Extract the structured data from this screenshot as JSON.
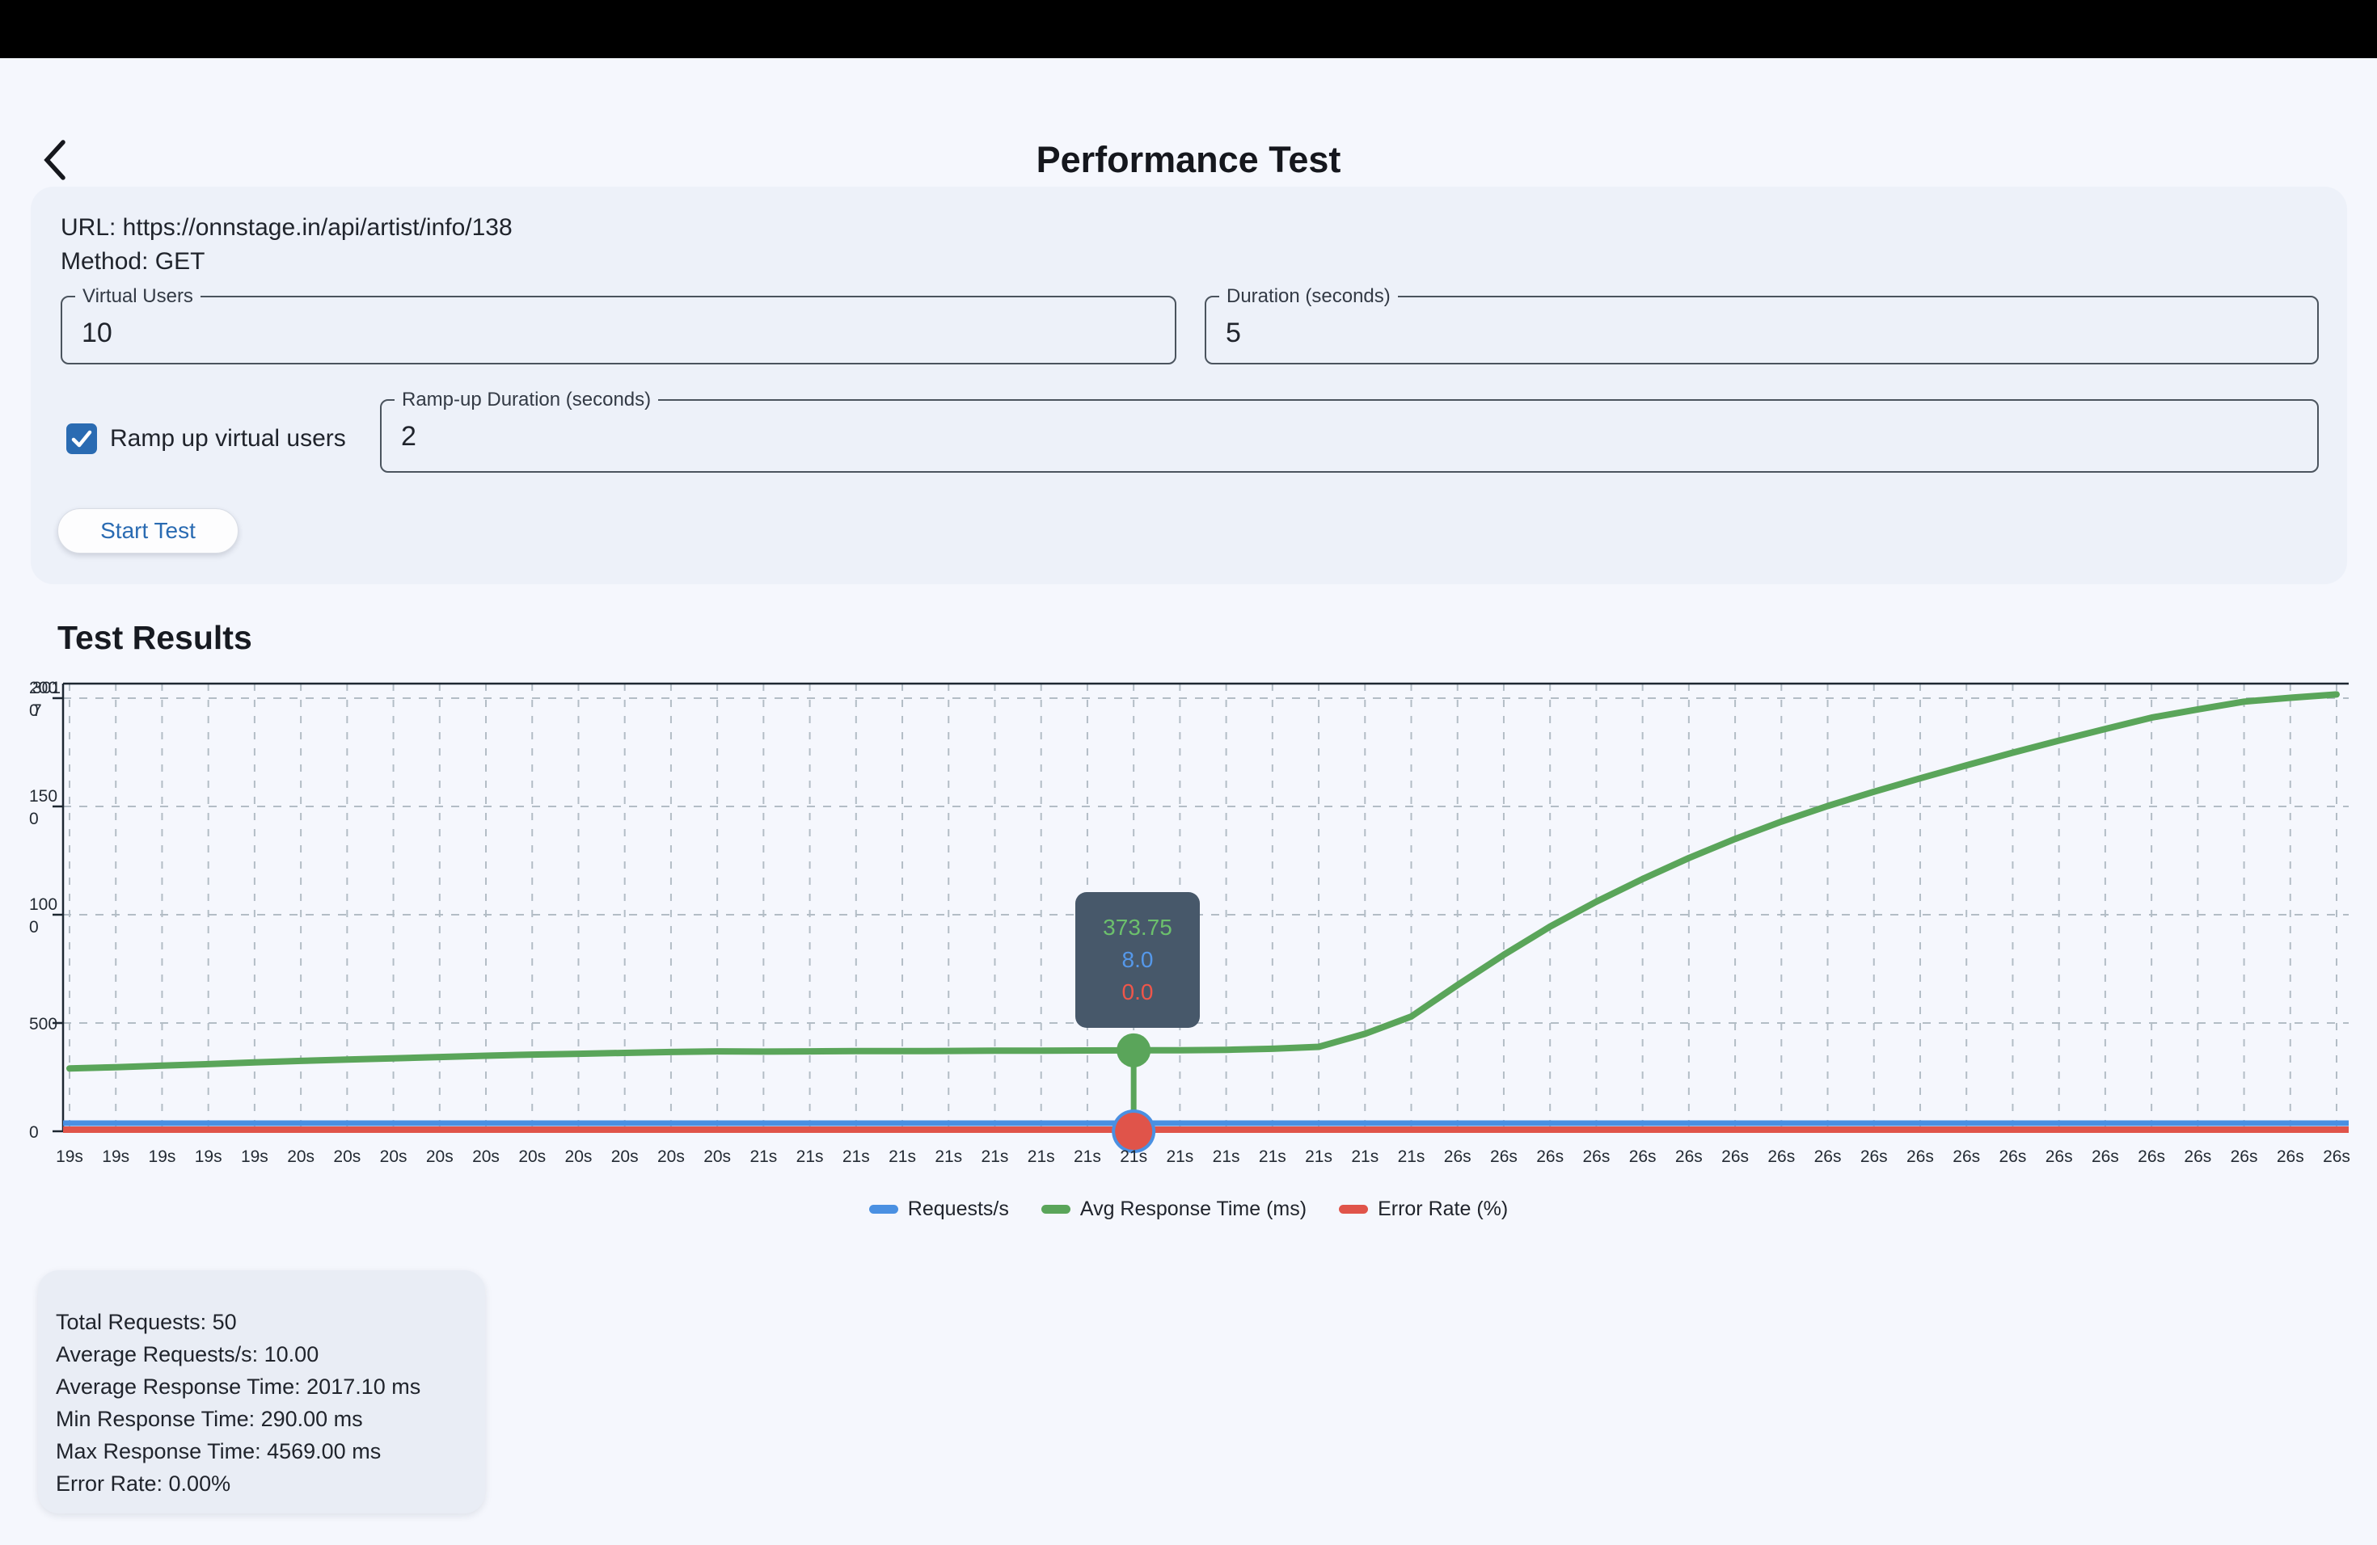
{
  "header": {
    "title": "Performance Test"
  },
  "form": {
    "url_line": "URL: https://onnstage.in/api/artist/info/138",
    "method_line": "Method: GET",
    "virtual_users": {
      "label": "Virtual Users",
      "value": "10"
    },
    "duration": {
      "label": "Duration (seconds)",
      "value": "5"
    },
    "ramp_checkbox": {
      "label": "Ramp up virtual users",
      "checked": true
    },
    "ramp_duration": {
      "label": "Ramp-up Duration (seconds)",
      "value": "2"
    },
    "start_button_label": "Start Test"
  },
  "results": {
    "heading": "Test Results"
  },
  "chart_data": {
    "type": "line",
    "title": "",
    "xlabel": "",
    "ylabel": "",
    "ylim": [
      0,
      2000
    ],
    "grid": "dashed",
    "legend_position": "bottom",
    "categories": [
      "19s",
      "19s",
      "19s",
      "19s",
      "19s",
      "20s",
      "20s",
      "20s",
      "20s",
      "20s",
      "20s",
      "20s",
      "20s",
      "20s",
      "20s",
      "21s",
      "21s",
      "21s",
      "21s",
      "21s",
      "21s",
      "21s",
      "21s",
      "21s",
      "21s",
      "21s",
      "21s",
      "21s",
      "21s",
      "21s",
      "26s",
      "26s",
      "26s",
      "26s",
      "26s",
      "26s",
      "26s",
      "26s",
      "26s",
      "26s",
      "26s",
      "26s",
      "26s",
      "26s",
      "26s",
      "26s",
      "26s",
      "26s",
      "26s",
      "26s"
    ],
    "series": [
      {
        "name": "Requests/s",
        "color": "#4a90e2",
        "values": [
          10,
          10,
          10,
          10,
          10,
          10,
          10,
          10,
          10,
          10,
          10,
          10,
          10,
          10,
          10,
          10,
          10,
          10,
          10,
          10,
          10,
          10,
          10,
          8,
          10,
          10,
          10,
          10,
          10,
          10,
          10,
          10,
          10,
          10,
          10,
          10,
          10,
          10,
          10,
          10,
          10,
          10,
          10,
          10,
          10,
          10,
          10,
          10,
          10,
          10
        ]
      },
      {
        "name": "Avg Response Time (ms)",
        "color": "#5aa55a",
        "values": [
          290,
          296,
          303,
          310,
          318,
          325,
          331,
          337,
          343,
          349,
          354,
          358,
          362,
          366,
          369,
          368,
          369,
          370,
          370,
          371,
          372,
          372,
          373,
          373.75,
          374,
          376,
          381,
          390,
          450,
          530,
          675,
          815,
          945,
          1060,
          1165,
          1262,
          1350,
          1430,
          1502,
          1568,
          1630,
          1690,
          1748,
          1804,
          1858,
          1910,
          1948,
          1984,
          2002,
          2017.1
        ]
      },
      {
        "name": "Error Rate (%)",
        "color": "#e0544a",
        "values": [
          0,
          0,
          0,
          0,
          0,
          0,
          0,
          0,
          0,
          0,
          0,
          0,
          0,
          0,
          0,
          0,
          0,
          0,
          0,
          0,
          0,
          0,
          0,
          0,
          0,
          0,
          0,
          0,
          0,
          0,
          0,
          0,
          0,
          0,
          0,
          0,
          0,
          0,
          0,
          0,
          0,
          0,
          0,
          0,
          0,
          0,
          0,
          0,
          0,
          0
        ]
      }
    ],
    "y_ticks": [
      {
        "value": 2000,
        "lines": [
          "200",
          "0"
        ],
        "overlay_lines": [
          "301",
          "7"
        ]
      },
      {
        "value": 1500,
        "lines": [
          "150",
          "0"
        ]
      },
      {
        "value": 1000,
        "lines": [
          "100",
          "0"
        ]
      },
      {
        "value": 500,
        "lines": [
          "500"
        ]
      },
      {
        "value": 0,
        "lines": [
          "0"
        ]
      }
    ],
    "tooltip": {
      "point_index": 23,
      "green": "373.75",
      "blue": "8.0",
      "red": "0.0",
      "bg": "#47586a"
    },
    "colors": {
      "axis": "#1d2731",
      "grid": "#b3bdc6",
      "tick_label": "#242b34"
    }
  },
  "legend": [
    {
      "label": "Requests/s",
      "color": "#4a90e2"
    },
    {
      "label": "Avg Response Time (ms)",
      "color": "#5aa55a"
    },
    {
      "label": "Error Rate (%)",
      "color": "#e0544a"
    }
  ],
  "summary": {
    "lines": [
      "Total Requests: 50",
      "Average Requests/s: 10.00",
      "Average Response Time: 2017.10 ms",
      "Min Response Time: 290.00 ms",
      "Max Response Time: 4569.00 ms",
      "Error Rate: 0.00%"
    ]
  }
}
